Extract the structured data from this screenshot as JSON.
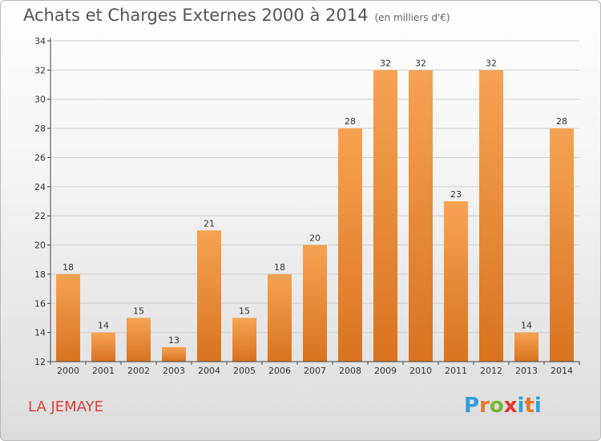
{
  "header": {
    "title": "Achats et Charges Externes 2000 à 2014",
    "subtitle": "(en milliers d'€)"
  },
  "footer": {
    "city": "LA JEMAYE",
    "logo_letters": [
      "P",
      "r",
      "o",
      "x",
      "i",
      "t",
      "i"
    ],
    "logo_colors": [
      "#2f9fd8",
      "#e7772a",
      "#74b72e",
      "#e0362c",
      "#2f9fd8",
      "#e7772a",
      "#2f9fd8"
    ]
  },
  "colors": {
    "bar_light": "#f6a353",
    "bar_dark": "#d9731f",
    "axis": "#444444",
    "grid": "#d0d0d0"
  },
  "chart_data": {
    "type": "bar",
    "categories": [
      "2000",
      "2001",
      "2002",
      "2003",
      "2004",
      "2005",
      "2006",
      "2007",
      "2008",
      "2009",
      "2010",
      "2011",
      "2012",
      "2013",
      "2014"
    ],
    "values": [
      18,
      14,
      15,
      13,
      21,
      15,
      18,
      20,
      28,
      32,
      32,
      23,
      32,
      14,
      28
    ],
    "value_labels": [
      "18",
      "14",
      "15",
      "13",
      "21",
      "15",
      "18",
      "20",
      "28",
      "32",
      "32",
      "23",
      "32",
      "14",
      "28"
    ],
    "yticks": [
      12,
      14,
      16,
      18,
      20,
      22,
      24,
      26,
      28,
      30,
      32,
      34
    ],
    "ytick_labels": [
      "12",
      "14",
      "16",
      "18",
      "20",
      "22",
      "24",
      "26",
      "28",
      "30",
      "32",
      "34"
    ],
    "ylim": [
      12,
      34
    ],
    "title": "Achats et Charges Externes 2000 à 2014",
    "xlabel": "",
    "ylabel": "",
    "grid": true
  }
}
